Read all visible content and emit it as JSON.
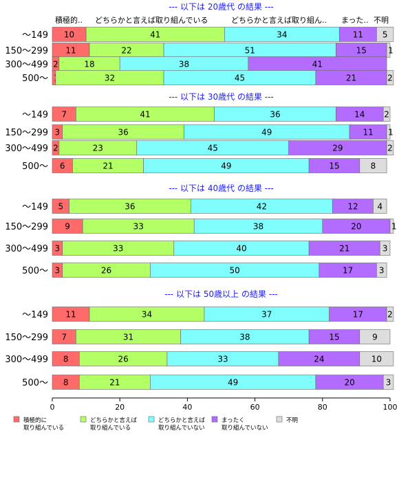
{
  "chart_data": {
    "type": "bar",
    "orientation": "horizontal",
    "stacked": true,
    "xlim": [
      0,
      100
    ],
    "x_ticks": [
      "0",
      "20",
      "40",
      "60",
      "80",
      "100"
    ],
    "grid": false,
    "legend_position": "bottom",
    "column_headers": [
      "積極的..",
      "どちらかと言えば取り組んでいる",
      "どちらかと言えば取り組ん..",
      "まった..",
      "不明"
    ],
    "series": [
      {
        "name": "積極的に\n取り組んでいる",
        "color": "#ff6b6b"
      },
      {
        "name": "どちらかと言えば\n取り組んでいる",
        "color": "#b3ff66"
      },
      {
        "name": "どちらかと言えば\n取り組んでいない",
        "color": "#7ffcfc"
      },
      {
        "name": "まったく\n取り組んでいない",
        "color": "#b46bff"
      },
      {
        "name": "不明",
        "color": "#dddddd"
      }
    ],
    "groups": [
      {
        "title": "--- 以下は 20歳代 の結果 ---",
        "rows": [
          {
            "label": "〜149",
            "values": [
              10,
              41,
              34,
              11,
              5
            ],
            "value_labels": [
              "10",
              "41",
              "34",
              "11",
              "5"
            ]
          },
          {
            "label": "150〜299",
            "values": [
              11,
              22,
              51,
              15,
              1
            ],
            "value_labels": [
              "11",
              "22",
              "51",
              "15",
              "1"
            ]
          },
          {
            "label": "300〜499",
            "values": [
              2,
              18,
              38,
              41,
              0
            ],
            "value_labels": [
              "2",
              "18",
              "38",
              "41",
              ""
            ]
          },
          {
            "label": "500〜",
            "values": [
              1,
              32,
              45,
              21,
              2
            ],
            "value_labels": [
              "1",
              "32",
              "45",
              "21",
              "2"
            ]
          }
        ]
      },
      {
        "title": "--- 以下は 30歳代 の結果 ---",
        "rows": [
          {
            "label": "〜149",
            "values": [
              7,
              41,
              36,
              14,
              2
            ],
            "value_labels": [
              "7",
              "41",
              "36",
              "14",
              "2"
            ]
          },
          {
            "label": "150〜299",
            "values": [
              3,
              36,
              49,
              11,
              1
            ],
            "value_labels": [
              "3",
              "36",
              "49",
              "11",
              "1"
            ]
          },
          {
            "label": "300〜499",
            "values": [
              2,
              23,
              45,
              29,
              2
            ],
            "value_labels": [
              "2",
              "23",
              "45",
              "29",
              "2"
            ]
          },
          {
            "label": "500〜",
            "values": [
              6,
              21,
              49,
              15,
              8
            ],
            "value_labels": [
              "6",
              "21",
              "49",
              "15",
              "8"
            ]
          }
        ]
      },
      {
        "title": "--- 以下は 40歳代 の結果 ---",
        "rows": [
          {
            "label": "〜149",
            "values": [
              5,
              36,
              42,
              12,
              4
            ],
            "value_labels": [
              "5",
              "36",
              "42",
              "12",
              "4"
            ]
          },
          {
            "label": "150〜299",
            "values": [
              9,
              33,
              38,
              20,
              1
            ],
            "value_labels": [
              "9",
              "33",
              "38",
              "20",
              "1"
            ]
          },
          {
            "label": "300〜499",
            "values": [
              3,
              33,
              40,
              21,
              3
            ],
            "value_labels": [
              "3",
              "33",
              "40",
              "21",
              "3"
            ]
          },
          {
            "label": "500〜",
            "values": [
              3,
              26,
              50,
              17,
              3
            ],
            "value_labels": [
              "3",
              "26",
              "50",
              "17",
              "3"
            ]
          }
        ]
      },
      {
        "title": "--- 以下は 50歳以上 の結果 ---",
        "rows": [
          {
            "label": "〜149",
            "values": [
              11,
              34,
              37,
              17,
              2
            ],
            "value_labels": [
              "11",
              "34",
              "37",
              "17",
              "2"
            ]
          },
          {
            "label": "150〜299",
            "values": [
              7,
              31,
              38,
              15,
              9
            ],
            "value_labels": [
              "7",
              "31",
              "38",
              "15",
              "9"
            ]
          },
          {
            "label": "300〜499",
            "values": [
              8,
              26,
              33,
              24,
              10
            ],
            "value_labels": [
              "8",
              "26",
              "33",
              "24",
              "10"
            ]
          },
          {
            "label": "500〜",
            "values": [
              8,
              21,
              49,
              20,
              3
            ],
            "value_labels": [
              "8",
              "21",
              "49",
              "20",
              "3"
            ]
          }
        ]
      }
    ]
  }
}
